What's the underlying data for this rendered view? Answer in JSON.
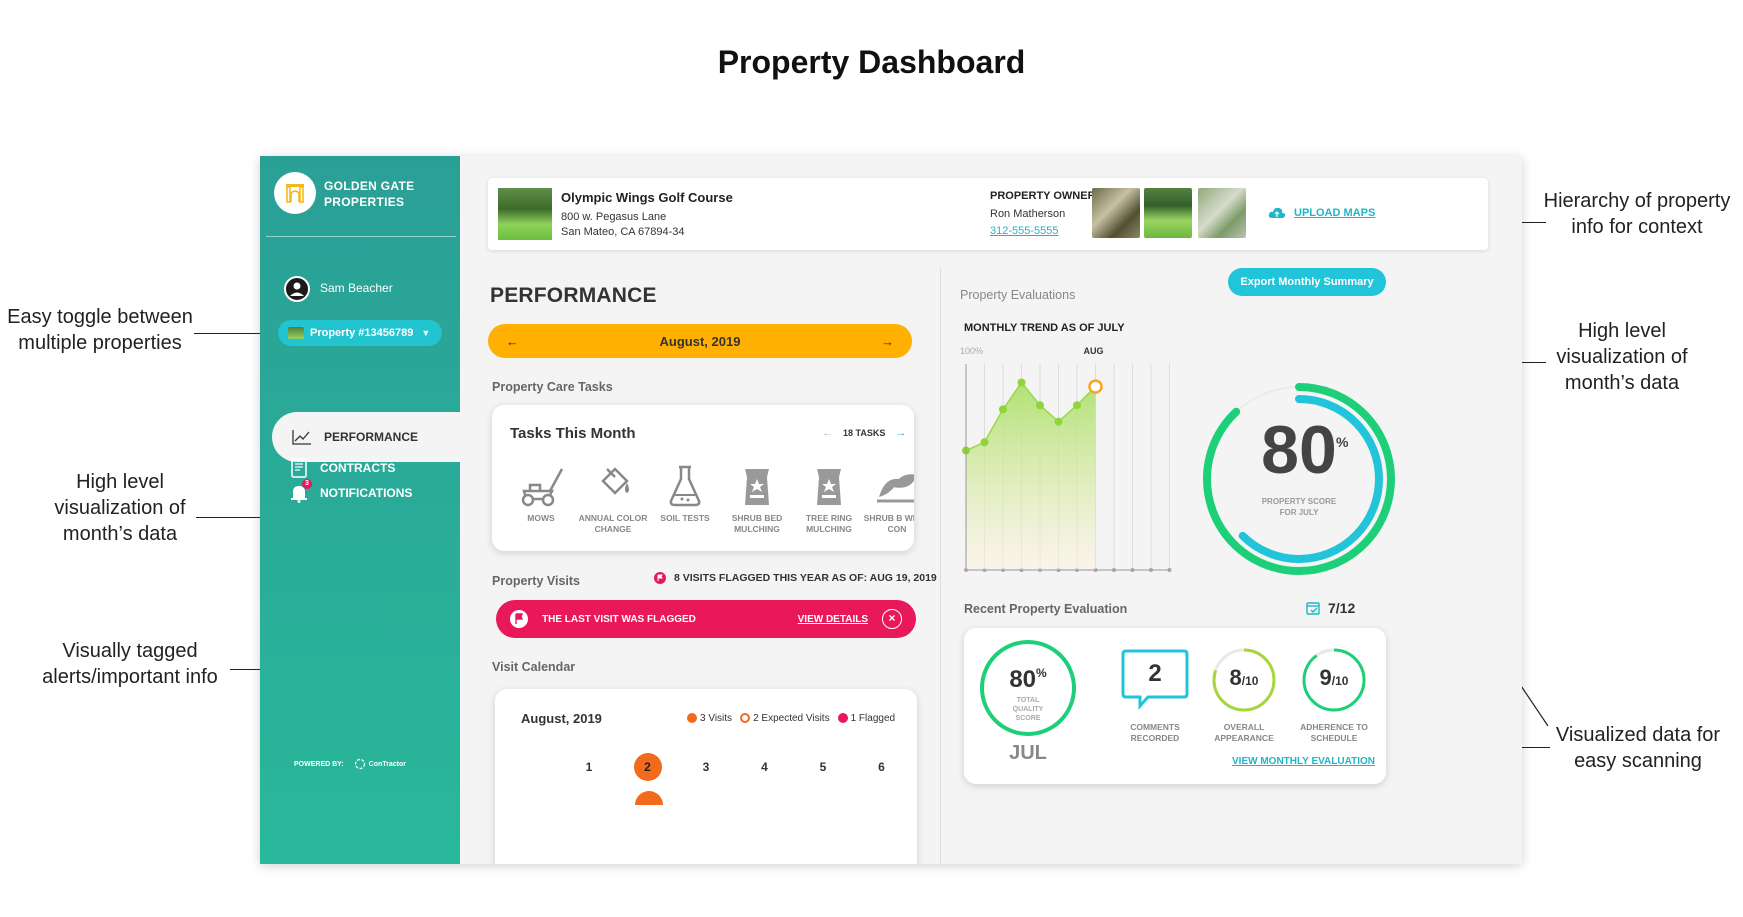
{
  "page_title": "Property Dashboard",
  "annotations": [
    "Easy toggle between\nmultiple properties",
    "High level\nvisualization of\nmonth’s data",
    "Visually tagged\nalerts/important info",
    "Hierarchy of property\ninfo for context",
    "High level\nvisualization of\nmonth’s data",
    "Visualized data for\neasy scanning"
  ],
  "sidebar": {
    "brand": "GOLDEN GATE PROPERTIES",
    "user": "Sam Beacher",
    "property_toggle": "Property #13456789",
    "nav": {
      "performance": "PERFORMANCE",
      "contracts": "CONTRACTS",
      "notifications": "NOTIFICATIONS",
      "notification_count": "3"
    },
    "powered_by": "POWERED BY:",
    "powered_brand": "ConTractor"
  },
  "header": {
    "property_name": "Olympic Wings Golf Course",
    "address_line1": "800 w. Pegasus Lane",
    "address_line2": "San Mateo, CA 67894-34",
    "owner_label": "PROPERTY OWNER",
    "owner_name": "Ron Matherson",
    "owner_phone": "312-555-5555",
    "upload_label": "UPLOAD MAPS"
  },
  "performance": {
    "title": "PERFORMANCE",
    "month": "August, 2019",
    "care_tasks_label": "Property Care Tasks",
    "tasks_title": "Tasks This Month",
    "tasks_count": "18 TASKS",
    "tasks": [
      {
        "label": "MOWS",
        "icon": "mower-icon"
      },
      {
        "label": "ANNUAL COLOR CHANGE",
        "icon": "paint-bucket-icon"
      },
      {
        "label": "SOIL TESTS",
        "icon": "flask-icon"
      },
      {
        "label": "SHRUB BED MULCHING",
        "icon": "mulch-bag-icon"
      },
      {
        "label": "TREE RING MULCHING",
        "icon": "mulch-bag-icon"
      },
      {
        "label": "SHRUB B WEED CON",
        "icon": "leaf-icon"
      }
    ],
    "visits_label": "Property Visits",
    "visits_flagged_info": "8 VISITS FLAGGED THIS YEAR AS OF: AUG 19, 2019",
    "alert_text": "THE LAST VISIT WAS FLAGGED",
    "alert_link": "VIEW DETAILS",
    "calendar_label": "Visit Calendar",
    "calendar_title": "August, 2019",
    "legend": {
      "visits": "3 Visits",
      "expected": "2 Expected Visits",
      "flagged": "1 Flagged"
    },
    "calendar_days": [
      "1",
      "2",
      "3",
      "4",
      "5",
      "6"
    ],
    "visit_day_index": 1
  },
  "evaluations": {
    "label": "Property Evaluations",
    "export_button": "Export Monthly Summary",
    "trend_title": "MONTHLY TREND AS OF JULY",
    "score": "80",
    "score_unit": "%",
    "score_caption": "PROPERTY SCORE FOR JULY",
    "recent_label": "Recent Property Evaluation",
    "recent_date": "7/12",
    "recent": {
      "total_score": "80",
      "total_unit": "%",
      "total_caption": "TOTAL QUALITY SCORE",
      "month": "JUL",
      "comments": "2",
      "comments_label": "COMMENTS RECORDED",
      "appearance": "8",
      "appearance_label": "OVERALL APPEARANCE",
      "adherence": "9",
      "adherence_label": "ADHERENCE TO SCHEDULE",
      "out_of": "/10",
      "link": "VIEW MONTHLY EVALUATION"
    }
  },
  "chart_data": {
    "type": "area",
    "title": "MONTHLY TREND AS OF JULY",
    "y_top_label": "100%",
    "highlight_label": "AUG",
    "ylim": [
      0,
      100
    ],
    "values": [
      58,
      62,
      78,
      91,
      80,
      72,
      80,
      89
    ],
    "highlight_index": 7,
    "total_slots": 12
  },
  "colors": {
    "teal": "#2aa89b",
    "cyan": "#22c4d9",
    "green": "#1ecf7a",
    "orange": "#ffb000",
    "alert": "#e8185a",
    "visit": "#f26a1b"
  }
}
